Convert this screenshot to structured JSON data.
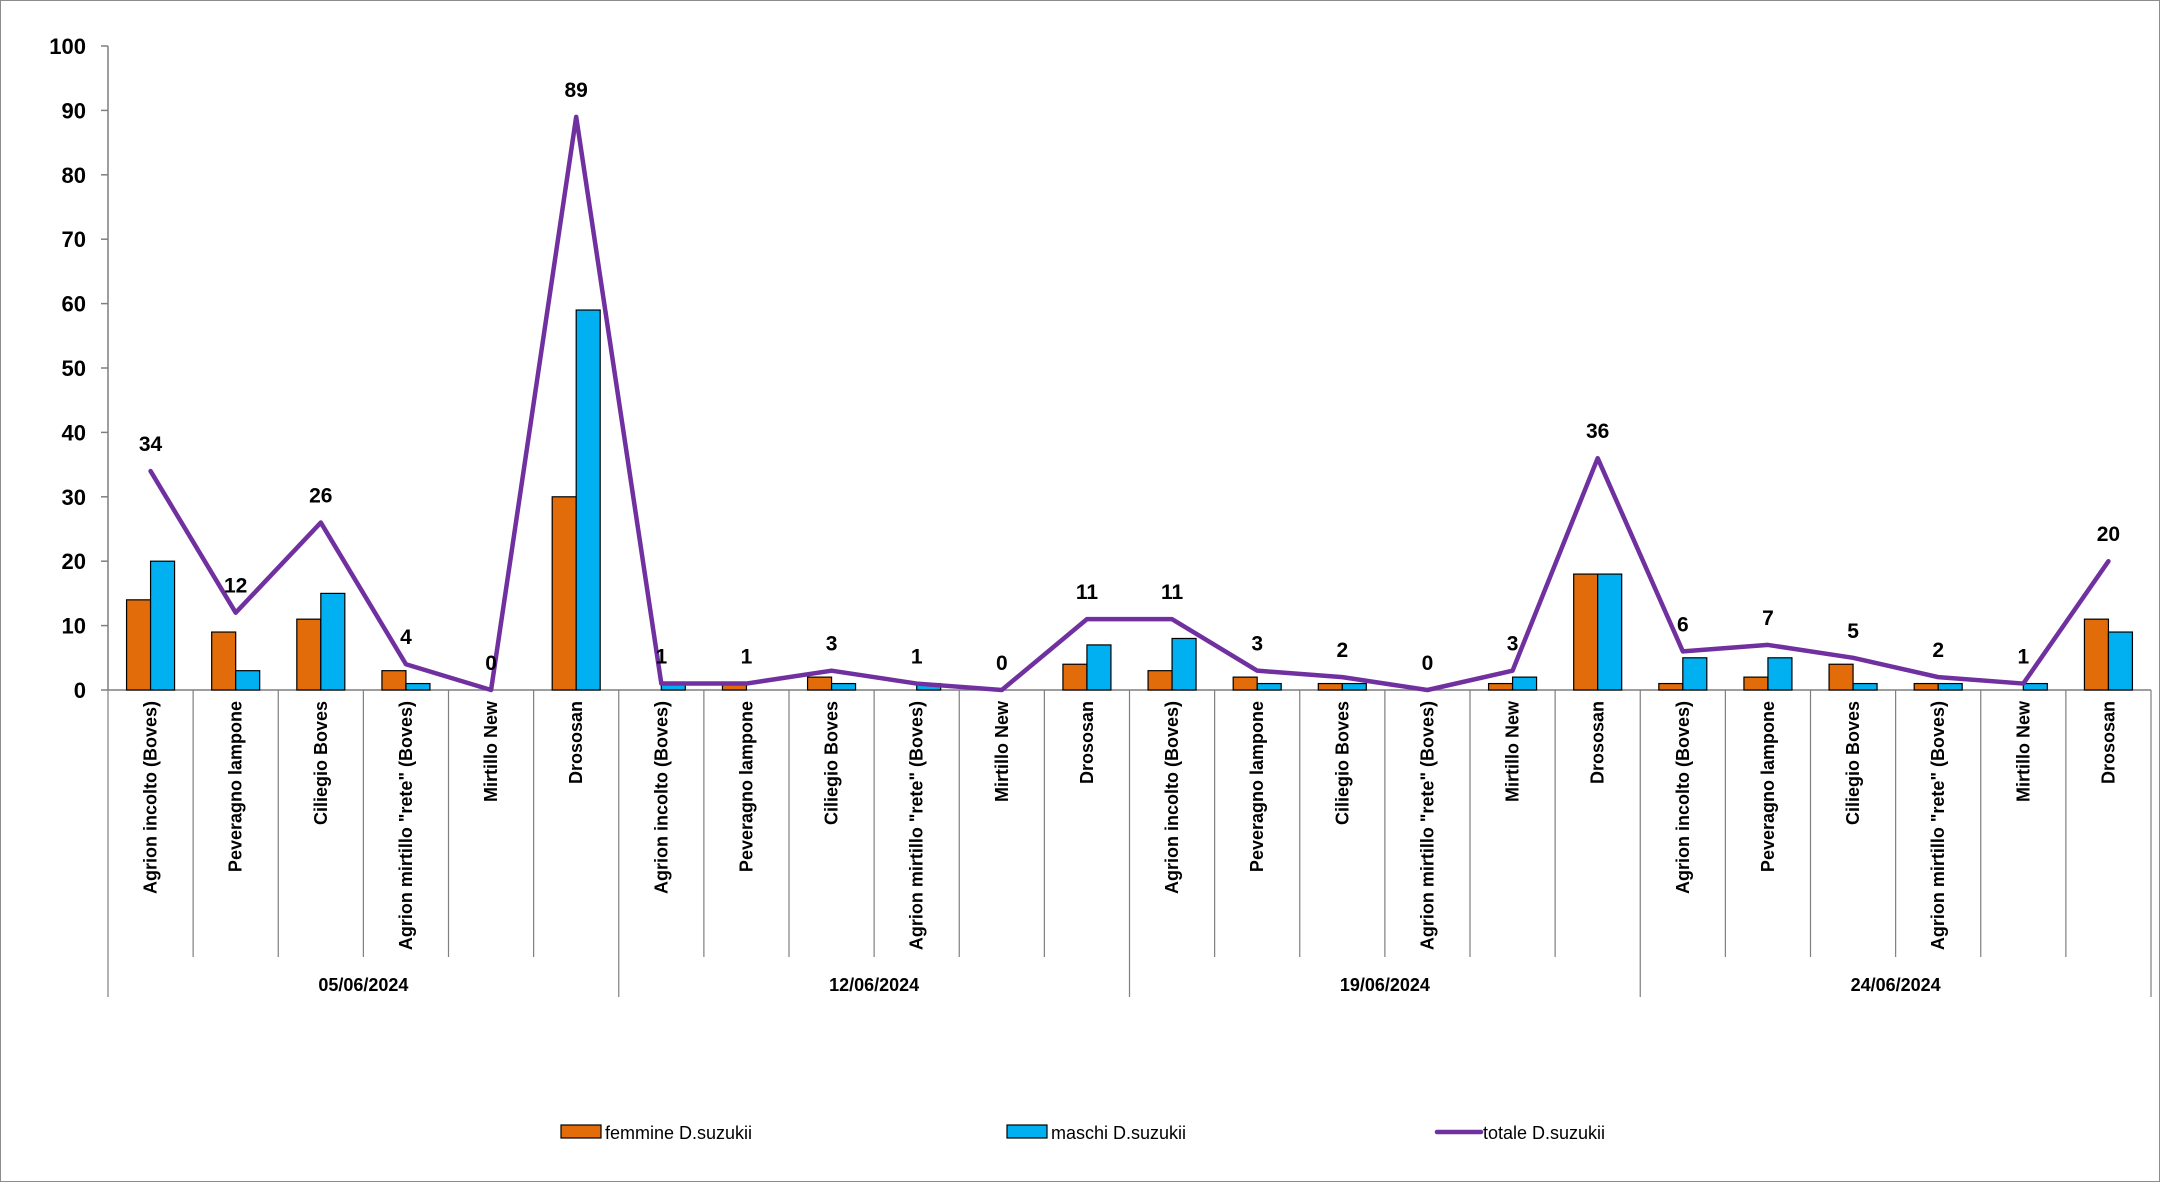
{
  "chart_data": {
    "type": "bar",
    "ylim": [
      0,
      100
    ],
    "yticks": [
      "0",
      "10",
      "20",
      "30",
      "40",
      "50",
      "60",
      "70",
      "80",
      "90",
      "100"
    ],
    "groups": [
      {
        "label": "05/06/2024",
        "categories": [
          "Agrion incolto (Boves)",
          "Peveragno lampone",
          "Ciliegio Boves",
          "Agrion mirtillo \"rete\" (Boves)",
          "Mirtillo New",
          "Drososan"
        ]
      },
      {
        "label": "12/06/2024",
        "categories": [
          "Agrion incolto (Boves)",
          "Peveragno lampone",
          "Ciliegio Boves",
          "Agrion mirtillo \"rete\" (Boves)",
          "Mirtillo New",
          "Drososan"
        ]
      },
      {
        "label": "19/06/2024",
        "categories": [
          "Agrion incolto (Boves)",
          "Peveragno lampone",
          "Ciliegio Boves",
          "Agrion mirtillo \"rete\" (Boves)",
          "Mirtillo New",
          "Drososan"
        ]
      },
      {
        "label": "24/06/2024",
        "categories": [
          "Agrion incolto (Boves)",
          "Peveragno lampone",
          "Ciliegio Boves",
          "Agrion mirtillo \"rete\" (Boves)",
          "Mirtillo New",
          "Drososan"
        ]
      }
    ],
    "series": [
      {
        "name": "femmine D.suzukii",
        "kind": "bar",
        "color": "#E36C0A",
        "values": [
          14,
          9,
          11,
          3,
          0,
          30,
          0,
          1,
          2,
          0,
          0,
          4,
          3,
          2,
          1,
          0,
          1,
          18,
          1,
          2,
          4,
          1,
          0,
          11
        ]
      },
      {
        "name": "maschi D.suzukii",
        "kind": "bar",
        "color": "#00B0F0",
        "values": [
          20,
          3,
          15,
          1,
          0,
          59,
          1,
          0,
          1,
          1,
          0,
          7,
          8,
          1,
          1,
          0,
          2,
          18,
          5,
          5,
          1,
          1,
          1,
          9
        ]
      },
      {
        "name": "totale D.suzukii",
        "kind": "line",
        "color": "#7030A0",
        "values": [
          34,
          12,
          26,
          4,
          0,
          89,
          1,
          1,
          3,
          1,
          0,
          11,
          11,
          3,
          2,
          0,
          3,
          36,
          6,
          7,
          5,
          2,
          1,
          20
        ],
        "data_labels": [
          "34",
          "12",
          "26",
          "4",
          "0",
          "89",
          "1",
          "1",
          "3",
          "1",
          "0",
          "11",
          "11",
          "3",
          "2",
          "0",
          "3",
          "36",
          "6",
          "7",
          "5",
          "2",
          "1",
          "20"
        ]
      }
    ],
    "legend_position": "bottom",
    "grid": false,
    "title": "",
    "xlabel": "",
    "ylabel": ""
  }
}
